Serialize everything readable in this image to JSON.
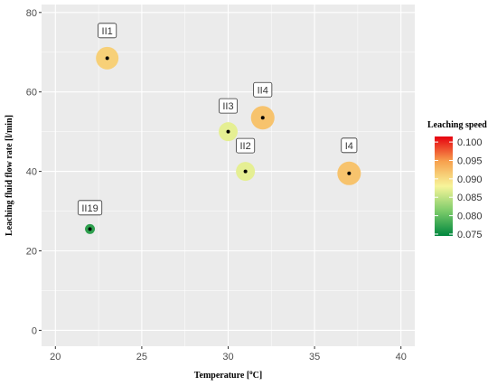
{
  "chart_data": {
    "type": "scatter",
    "title": "",
    "xlabel": "Temperature [",
    "xlabel_sup": "o",
    "xlabel_tail": "C]",
    "ylabel": "Leaching fluid flow rate [l/min]",
    "xlim": [
      19.2,
      40.8
    ],
    "ylim": [
      -4,
      82
    ],
    "x_ticks": [
      20,
      25,
      30,
      35,
      40
    ],
    "y_ticks": [
      0,
      20,
      40,
      60,
      80
    ],
    "x_tick_labels": [
      "20",
      "25",
      "30",
      "35",
      "40"
    ],
    "y_tick_labels": [
      "0",
      "20",
      "40",
      "60",
      "80"
    ],
    "grid": true,
    "legend": {
      "title": "Leaching speed",
      "placement": "right",
      "min": 0.0745,
      "max": 0.1015,
      "ticks": [
        0.075,
        0.08,
        0.085,
        0.09,
        0.095,
        0.1
      ],
      "tick_labels": [
        "0.075",
        "0.080",
        "0.085",
        "0.090",
        "0.095",
        "0.100"
      ]
    },
    "points": [
      {
        "label": "II1",
        "x": 23,
        "y": 68.5,
        "speed": 0.091
      },
      {
        "label": "II4",
        "x": 32,
        "y": 53.5,
        "speed": 0.092
      },
      {
        "label": "II3",
        "x": 30,
        "y": 50.0,
        "speed": 0.087
      },
      {
        "label": "II2",
        "x": 31,
        "y": 40.0,
        "speed": 0.087
      },
      {
        "label": "I4",
        "x": 37,
        "y": 39.5,
        "speed": 0.092
      },
      {
        "label": "II19",
        "x": 22,
        "y": 25.5,
        "speed": 0.077
      }
    ],
    "colors": {
      "panel": "#ebebeb",
      "grid": "#ffffff",
      "low": "#00873e",
      "mid": "#f7f59a",
      "high": "#e6000f"
    }
  }
}
